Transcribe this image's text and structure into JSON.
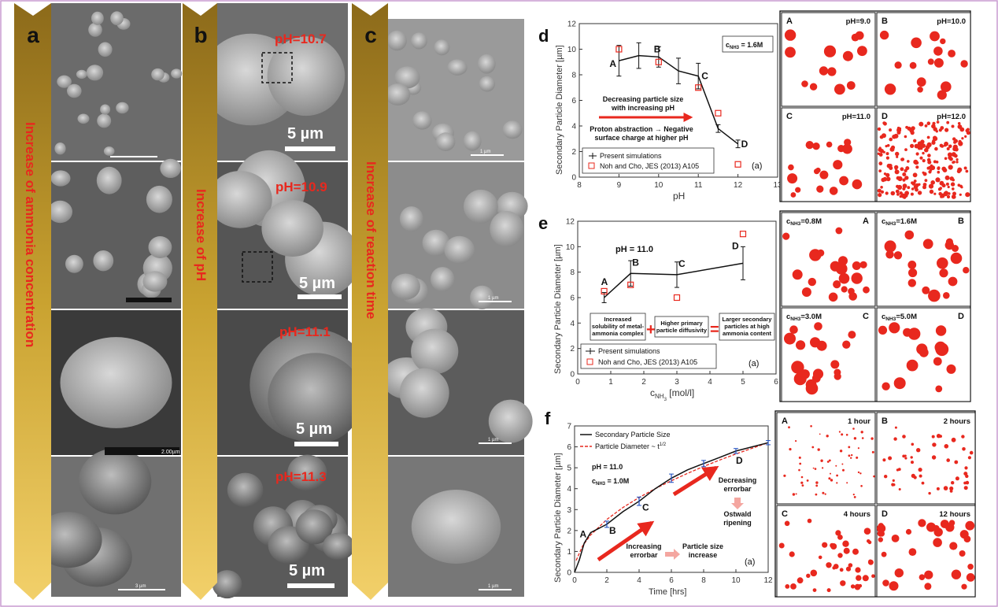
{
  "colors": {
    "accent_red": "#e8281e",
    "arrow_gold": "#c9a230",
    "sem_gray": "#8a8a8a",
    "frame": "#c89bd0"
  },
  "panel_a": {
    "letter": "a",
    "arrow_text": "Increase of ammonia concentration",
    "scalebars": [
      "",
      "",
      "2.00µm",
      "3 µm"
    ]
  },
  "panel_b": {
    "letter": "b",
    "arrow_text": "Increase of pH",
    "labels": [
      "pH=10.7",
      "pH=10.9",
      "pH=11.1",
      "pH=11.3"
    ],
    "scale_text": "5 µm"
  },
  "panel_c": {
    "letter": "c",
    "arrow_text": "Increase of reaction time",
    "scale_text": "1 µm"
  },
  "panel_d": {
    "letter": "d",
    "ylabel": "Secondary Particle Diameter [µm]",
    "xlabel": "pH",
    "xticks": [
      "8",
      "9",
      "10",
      "11",
      "12",
      "13"
    ],
    "yticks": [
      "0",
      "2",
      "4",
      "6",
      "8",
      "10",
      "12"
    ],
    "box_label": "c",
    "box_label_sub": "NH3",
    "box_label_rest": " = 1.6M",
    "annot1": [
      "Decreasing particle size",
      "with increasing pH"
    ],
    "annot2": [
      "Proton abstraction → Negative",
      "surface charge at higher pH"
    ],
    "legend": [
      "Present simulations",
      "Noh and Cho, JES (2013) A105"
    ],
    "tag": "(a)",
    "points": [
      "A",
      "B",
      "C",
      "D"
    ]
  },
  "panel_e": {
    "letter": "e",
    "ylabel": "Secondary Particle Diameter [µm]",
    "xlabel_main": "c",
    "xlabel_sub": "NH",
    "xlabel_sub2": "3",
    "xlabel_unit": " [mol/l]",
    "xticks": [
      "0",
      "1",
      "2",
      "3",
      "4",
      "5",
      "6"
    ],
    "yticks": [
      "0",
      "2",
      "4",
      "6",
      "8",
      "10",
      "12"
    ],
    "title": "pH = 11.0",
    "box1": [
      "Increased",
      "solubility of metal-",
      "ammonia complex"
    ],
    "box2": [
      "Higher primary",
      "particle diffusivity"
    ],
    "box3": [
      "Larger secondary",
      "particles at high",
      "ammonia content"
    ],
    "plus": "+",
    "equals": "=",
    "legend": [
      "Present simulations",
      "Noh and Cho, JES (2013) A105"
    ],
    "tag": "(a)",
    "points": [
      "A",
      "B",
      "C",
      "D"
    ]
  },
  "panel_f": {
    "letter": "f",
    "ylabel": "Secondary Particle Diameter [µm]",
    "xlabel": "Time [hrs]",
    "xticks": [
      "0",
      "2",
      "4",
      "6",
      "8",
      "10",
      "12"
    ],
    "yticks": [
      "0",
      "1",
      "2",
      "3",
      "4",
      "5",
      "6",
      "7"
    ],
    "legend": [
      "Secondary Particle Size",
      "Particle Diameter ~ t"
    ],
    "legend_exp": "1/2",
    "ph": "pH = 11.0",
    "conc": "c",
    "conc_sub": "NH3",
    "conc_rest": " = 1.0M",
    "annot_left": [
      "Increasing",
      "errorbar"
    ],
    "annot_mid": [
      "Particle size",
      "increase"
    ],
    "annot_right1": [
      "Decreasing",
      "errorbar"
    ],
    "annot_right2": [
      "Ostwald",
      "ripening"
    ],
    "tag": "(a)",
    "points": [
      "A",
      "B",
      "C",
      "D"
    ]
  },
  "sims_d": [
    {
      "letter": "A",
      "label": "pH=9.0"
    },
    {
      "letter": "B",
      "label": "pH=10.0"
    },
    {
      "letter": "C",
      "label": "pH=11.0"
    },
    {
      "letter": "D",
      "label": "pH=12.0"
    }
  ],
  "sims_e": [
    {
      "letter": "A",
      "label": "c",
      "sub": "NH3",
      "rest": "=0.8M"
    },
    {
      "letter": "B",
      "label": "c",
      "sub": "NH3",
      "rest": "=1.6M"
    },
    {
      "letter": "C",
      "label": "c",
      "sub": "NH3",
      "rest": "=3.0M"
    },
    {
      "letter": "D",
      "label": "c",
      "sub": "NH3",
      "rest": "=5.0M"
    }
  ],
  "sims_f": [
    {
      "letter": "A",
      "label": "1 hour"
    },
    {
      "letter": "B",
      "label": "2 hours"
    },
    {
      "letter": "C",
      "label": "4 hours"
    },
    {
      "letter": "D",
      "label": "12 hours"
    }
  ],
  "chart_data": [
    {
      "type": "line",
      "xlabel": "pH",
      "ylabel": "Secondary Particle Diameter [µm]",
      "xlim": [
        8,
        13
      ],
      "ylim": [
        0,
        12
      ],
      "series": [
        {
          "name": "Present simulations",
          "x": [
            9,
            9.5,
            10,
            10.5,
            11,
            11.5,
            12
          ],
          "y": [
            9.1,
            9.5,
            9.4,
            8.3,
            7.9,
            3.8,
            2.6
          ],
          "err": [
            1.2,
            1.0,
            0.8,
            1.0,
            1.0,
            0.3,
            0.3
          ]
        },
        {
          "name": "Noh and Cho, JES (2013) A105",
          "x": [
            9,
            10,
            11,
            11.5,
            12
          ],
          "y": [
            10,
            9,
            7,
            5,
            1
          ]
        }
      ]
    },
    {
      "type": "line",
      "xlabel": "cNH3 [mol/l]",
      "ylabel": "Secondary Particle Diameter [µm]",
      "xlim": [
        0,
        6
      ],
      "ylim": [
        0,
        12
      ],
      "series": [
        {
          "name": "Present simulations",
          "x": [
            0.8,
            1.6,
            3.0,
            5.0
          ],
          "y": [
            6.0,
            7.9,
            7.8,
            8.7
          ],
          "err": [
            0.4,
            1.0,
            1.0,
            1.3
          ]
        },
        {
          "name": "Noh and Cho, JES (2013) A105",
          "x": [
            0.8,
            1.6,
            3.0,
            5.0
          ],
          "y": [
            6.5,
            7.0,
            6.0,
            11.0
          ]
        }
      ]
    },
    {
      "type": "line",
      "xlabel": "Time [hrs]",
      "ylabel": "Secondary Particle Diameter [µm]",
      "xlim": [
        0,
        12
      ],
      "ylim": [
        0,
        7
      ],
      "series": [
        {
          "name": "Secondary Particle Size",
          "x": [
            0,
            0.3,
            0.6,
            1,
            1.5,
            2,
            3,
            4,
            5,
            6,
            7,
            8,
            9,
            10,
            11,
            12
          ],
          "y": [
            0,
            0.6,
            1.4,
            1.9,
            2.1,
            2.3,
            2.9,
            3.4,
            4.0,
            4.5,
            4.9,
            5.2,
            5.5,
            5.8,
            6.0,
            6.2
          ]
        },
        {
          "name": "Particle Diameter ~ t1/2",
          "x": [
            0.1,
            0.5,
            1,
            2,
            3,
            4,
            5,
            6,
            7,
            8,
            9,
            10,
            11,
            12
          ],
          "y": [
            0.57,
            1.27,
            1.79,
            2.53,
            3.1,
            3.58,
            4.0,
            4.38,
            4.73,
            5.06,
            5.37,
            5.66,
            5.93,
            6.2
          ]
        }
      ],
      "errorbars": {
        "x": [
          2,
          4,
          6,
          8,
          10,
          12
        ],
        "y": [
          2.3,
          3.4,
          4.5,
          5.2,
          5.8,
          6.2
        ],
        "err": [
          0.15,
          0.2,
          0.2,
          0.15,
          0.12,
          0.1
        ]
      }
    }
  ]
}
